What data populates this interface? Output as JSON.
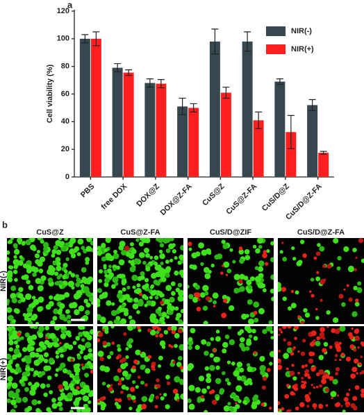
{
  "panels": [
    "a",
    "b"
  ],
  "chart_data": {
    "type": "bar",
    "ylabel": "Cell viability (%)",
    "categories": [
      "PBS",
      "free DOX",
      "DOX@Z",
      "DOX@Z-FA",
      "CuS@Z",
      "CuS@Z-FA",
      "CuS/D@Z",
      "CuS/D@Z-FA"
    ],
    "series": [
      {
        "name": "NIR(-)",
        "color": "#37474f",
        "values": [
          100,
          79,
          68,
          51,
          98,
          98,
          69,
          52
        ],
        "errors": [
          3,
          3,
          3,
          6,
          9,
          7,
          2,
          4
        ]
      },
      {
        "name": "NIR(+)",
        "color": "#ff1f1f",
        "values": [
          100,
          75.5,
          67.5,
          50,
          61,
          41,
          32.5,
          17.5
        ],
        "errors": [
          5,
          2,
          3,
          3,
          4,
          6,
          12,
          1
        ]
      }
    ],
    "ylim": [
      0,
      120
    ],
    "yticks": [
      0,
      20,
      40,
      60,
      80,
      100,
      120
    ],
    "legend": "upper right"
  },
  "micrographs": {
    "columns": [
      "CuS@Z",
      "CuS@Z-FA",
      "CuS/D@ZIF",
      "CuS/D@Z-FA"
    ],
    "rows": [
      "NIR(-)",
      "NIR(+)"
    ]
  }
}
